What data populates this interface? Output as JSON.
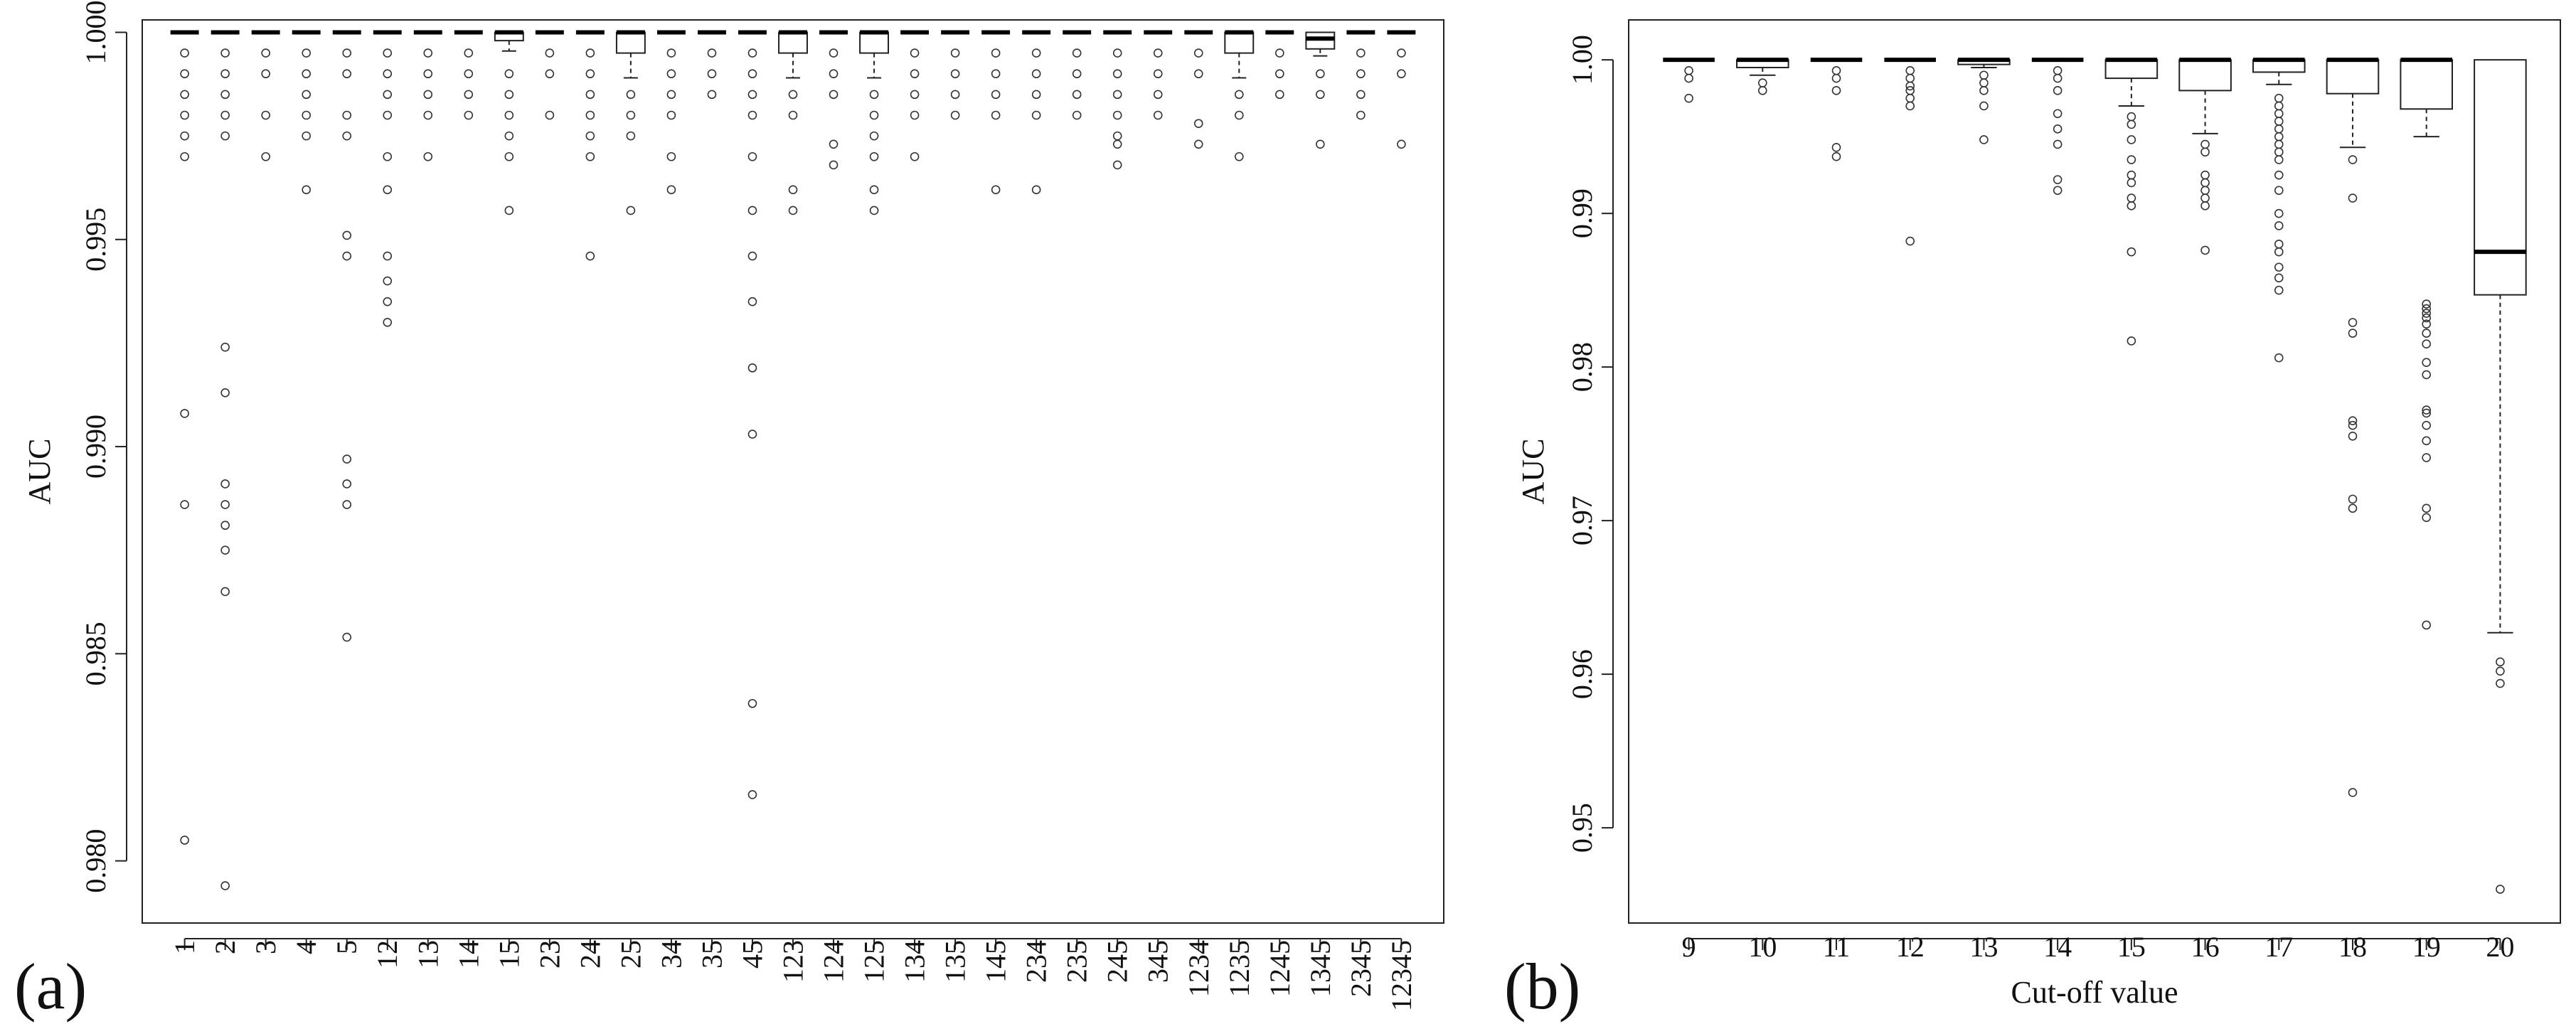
{
  "chart_data": [
    {
      "type": "box",
      "panel_label": "(a)",
      "ylabel": "AUC",
      "xlabel": "",
      "ylim": [
        0.9785,
        1.0003
      ],
      "yticks": [
        0.98,
        0.985,
        0.99,
        0.995,
        1.0
      ],
      "ytick_labels": [
        "0.980",
        "0.985",
        "0.990",
        "0.995",
        "1.000"
      ],
      "grid": false,
      "categories": [
        "1",
        "2",
        "3",
        "4",
        "5",
        "12",
        "13",
        "14",
        "15",
        "23",
        "24",
        "25",
        "34",
        "35",
        "45",
        "123",
        "124",
        "125",
        "134",
        "135",
        "145",
        "234",
        "235",
        "245",
        "345",
        "1234",
        "1235",
        "1245",
        "1345",
        "2345",
        "12345"
      ],
      "boxes": [
        {
          "q1": 1.0,
          "median": 1.0,
          "q3": 1.0,
          "whisker_low": 1.0,
          "whisker_high": 1.0,
          "outliers": [
            0.9995,
            0.999,
            0.9985,
            0.998,
            0.9975,
            0.997,
            0.9908,
            0.9886,
            0.9805
          ]
        },
        {
          "q1": 1.0,
          "median": 1.0,
          "q3": 1.0,
          "whisker_low": 1.0,
          "whisker_high": 1.0,
          "outliers": [
            0.9995,
            0.999,
            0.9985,
            0.998,
            0.9975,
            0.9924,
            0.9913,
            0.9891,
            0.9886,
            0.9881,
            0.9875,
            0.9865,
            0.9794
          ]
        },
        {
          "q1": 1.0,
          "median": 1.0,
          "q3": 1.0,
          "whisker_low": 1.0,
          "whisker_high": 1.0,
          "outliers": [
            0.9995,
            0.999,
            0.998,
            0.997
          ]
        },
        {
          "q1": 1.0,
          "median": 1.0,
          "q3": 1.0,
          "whisker_low": 1.0,
          "whisker_high": 1.0,
          "outliers": [
            0.9995,
            0.999,
            0.9985,
            0.998,
            0.9975,
            0.9962
          ]
        },
        {
          "q1": 1.0,
          "median": 1.0,
          "q3": 1.0,
          "whisker_low": 1.0,
          "whisker_high": 1.0,
          "outliers": [
            0.9995,
            0.999,
            0.998,
            0.9975,
            0.9951,
            0.9946,
            0.9897,
            0.9891,
            0.9886,
            0.9854
          ]
        },
        {
          "q1": 1.0,
          "median": 1.0,
          "q3": 1.0,
          "whisker_low": 1.0,
          "whisker_high": 1.0,
          "outliers": [
            0.9995,
            0.999,
            0.9985,
            0.998,
            0.997,
            0.9962,
            0.9946,
            0.994,
            0.9935,
            0.993
          ]
        },
        {
          "q1": 1.0,
          "median": 1.0,
          "q3": 1.0,
          "whisker_low": 1.0,
          "whisker_high": 1.0,
          "outliers": [
            0.9995,
            0.999,
            0.9985,
            0.998,
            0.997
          ]
        },
        {
          "q1": 1.0,
          "median": 1.0,
          "q3": 1.0,
          "whisker_low": 1.0,
          "whisker_high": 1.0,
          "outliers": [
            0.9995,
            0.999,
            0.9985,
            0.998
          ]
        },
        {
          "q1": 0.9998,
          "median": 1.0,
          "q3": 1.0,
          "whisker_low": 0.99955,
          "whisker_high": 1.0,
          "outliers": [
            0.999,
            0.9985,
            0.998,
            0.9975,
            0.997,
            0.9957
          ]
        },
        {
          "q1": 1.0,
          "median": 1.0,
          "q3": 1.0,
          "whisker_low": 1.0,
          "whisker_high": 1.0,
          "outliers": [
            0.9995,
            0.999,
            0.998
          ]
        },
        {
          "q1": 1.0,
          "median": 1.0,
          "q3": 1.0,
          "whisker_low": 1.0,
          "whisker_high": 1.0,
          "outliers": [
            0.9995,
            0.999,
            0.9985,
            0.998,
            0.9975,
            0.997,
            0.9946
          ]
        },
        {
          "q1": 0.9995,
          "median": 1.0,
          "q3": 1.0,
          "whisker_low": 0.9989,
          "whisker_high": 1.0,
          "outliers": [
            0.9985,
            0.998,
            0.9975,
            0.9957
          ]
        },
        {
          "q1": 1.0,
          "median": 1.0,
          "q3": 1.0,
          "whisker_low": 1.0,
          "whisker_high": 1.0,
          "outliers": [
            0.9995,
            0.999,
            0.9985,
            0.998,
            0.997,
            0.9962
          ]
        },
        {
          "q1": 1.0,
          "median": 1.0,
          "q3": 1.0,
          "whisker_low": 1.0,
          "whisker_high": 1.0,
          "outliers": [
            0.9995,
            0.999,
            0.9985
          ]
        },
        {
          "q1": 1.0,
          "median": 1.0,
          "q3": 1.0,
          "whisker_low": 1.0,
          "whisker_high": 1.0,
          "outliers": [
            0.9995,
            0.999,
            0.9985,
            0.998,
            0.997,
            0.9957,
            0.9946,
            0.9935,
            0.9919,
            0.9903,
            0.9838,
            0.9816
          ]
        },
        {
          "q1": 0.9995,
          "median": 1.0,
          "q3": 1.0,
          "whisker_low": 0.9989,
          "whisker_high": 1.0,
          "outliers": [
            0.9985,
            0.998,
            0.9962,
            0.9957
          ]
        },
        {
          "q1": 1.0,
          "median": 1.0,
          "q3": 1.0,
          "whisker_low": 1.0,
          "whisker_high": 1.0,
          "outliers": [
            0.9995,
            0.999,
            0.9985,
            0.9973,
            0.9968
          ]
        },
        {
          "q1": 0.9995,
          "median": 1.0,
          "q3": 1.0,
          "whisker_low": 0.9989,
          "whisker_high": 1.0,
          "outliers": [
            0.9985,
            0.998,
            0.9975,
            0.997,
            0.9962,
            0.9957
          ]
        },
        {
          "q1": 1.0,
          "median": 1.0,
          "q3": 1.0,
          "whisker_low": 1.0,
          "whisker_high": 1.0,
          "outliers": [
            0.9995,
            0.999,
            0.9985,
            0.998,
            0.997
          ]
        },
        {
          "q1": 1.0,
          "median": 1.0,
          "q3": 1.0,
          "whisker_low": 1.0,
          "whisker_high": 1.0,
          "outliers": [
            0.9995,
            0.999,
            0.9985,
            0.998
          ]
        },
        {
          "q1": 1.0,
          "median": 1.0,
          "q3": 1.0,
          "whisker_low": 1.0,
          "whisker_high": 1.0,
          "outliers": [
            0.9995,
            0.999,
            0.9985,
            0.998,
            0.9962
          ]
        },
        {
          "q1": 1.0,
          "median": 1.0,
          "q3": 1.0,
          "whisker_low": 1.0,
          "whisker_high": 1.0,
          "outliers": [
            0.9995,
            0.999,
            0.9985,
            0.998,
            0.9962
          ]
        },
        {
          "q1": 1.0,
          "median": 1.0,
          "q3": 1.0,
          "whisker_low": 1.0,
          "whisker_high": 1.0,
          "outliers": [
            0.9995,
            0.999,
            0.9985,
            0.998
          ]
        },
        {
          "q1": 1.0,
          "median": 1.0,
          "q3": 1.0,
          "whisker_low": 1.0,
          "whisker_high": 1.0,
          "outliers": [
            0.9995,
            0.999,
            0.9985,
            0.998,
            0.9975,
            0.9973,
            0.9968
          ]
        },
        {
          "q1": 1.0,
          "median": 1.0,
          "q3": 1.0,
          "whisker_low": 1.0,
          "whisker_high": 1.0,
          "outliers": [
            0.9995,
            0.999,
            0.9985,
            0.998
          ]
        },
        {
          "q1": 1.0,
          "median": 1.0,
          "q3": 1.0,
          "whisker_low": 1.0,
          "whisker_high": 1.0,
          "outliers": [
            0.9995,
            0.999,
            0.9978,
            0.9973
          ]
        },
        {
          "q1": 0.9995,
          "median": 1.0,
          "q3": 1.0,
          "whisker_low": 0.9989,
          "whisker_high": 1.0,
          "outliers": [
            0.9985,
            0.998,
            0.997
          ]
        },
        {
          "q1": 1.0,
          "median": 1.0,
          "q3": 1.0,
          "whisker_low": 1.0,
          "whisker_high": 1.0,
          "outliers": [
            0.9995,
            0.999,
            0.9985
          ]
        },
        {
          "q1": 0.9996,
          "median": 0.99985,
          "q3": 1.0,
          "whisker_low": 0.99943,
          "whisker_high": 1.0,
          "outliers": [
            0.999,
            0.9985,
            0.9973
          ]
        },
        {
          "q1": 1.0,
          "median": 1.0,
          "q3": 1.0,
          "whisker_low": 1.0,
          "whisker_high": 1.0,
          "outliers": [
            0.9995,
            0.999,
            0.9985,
            0.998
          ]
        },
        {
          "q1": 1.0,
          "median": 1.0,
          "q3": 1.0,
          "whisker_low": 1.0,
          "whisker_high": 1.0,
          "outliers": [
            0.9995,
            0.999,
            0.9973
          ]
        }
      ]
    },
    {
      "type": "box",
      "panel_label": "(b)",
      "ylabel": "AUC",
      "xlabel": "Cut-off value",
      "ylim": [
        0.9438,
        1.0026
      ],
      "yticks": [
        0.95,
        0.96,
        0.97,
        0.98,
        0.99,
        1.0
      ],
      "ytick_labels": [
        "0.95",
        "0.96",
        "0.97",
        "0.98",
        "0.99",
        "1.00"
      ],
      "grid": false,
      "categories": [
        "9",
        "10",
        "11",
        "12",
        "13",
        "14",
        "15",
        "16",
        "17",
        "18",
        "19",
        "20"
      ],
      "boxes": [
        {
          "q1": 1.0,
          "median": 1.0,
          "q3": 1.0,
          "whisker_low": 1.0,
          "whisker_high": 1.0,
          "outliers": [
            0.9993,
            0.9988,
            0.9975
          ]
        },
        {
          "q1": 0.9995,
          "median": 1.0,
          "q3": 1.0,
          "whisker_low": 0.999,
          "whisker_high": 1.0,
          "outliers": [
            0.9985,
            0.998
          ]
        },
        {
          "q1": 1.0,
          "median": 1.0,
          "q3": 1.0,
          "whisker_low": 1.0,
          "whisker_high": 1.0,
          "outliers": [
            0.9993,
            0.9988,
            0.998,
            0.9943,
            0.9937
          ]
        },
        {
          "q1": 1.0,
          "median": 1.0,
          "q3": 1.0,
          "whisker_low": 1.0,
          "whisker_high": 1.0,
          "outliers": [
            0.9993,
            0.9988,
            0.9983,
            0.998,
            0.9975,
            0.997,
            0.9882
          ]
        },
        {
          "q1": 0.9997,
          "median": 1.0,
          "q3": 1.0,
          "whisker_low": 0.9995,
          "whisker_high": 1.0,
          "outliers": [
            0.999,
            0.9985,
            0.998,
            0.997,
            0.9948
          ]
        },
        {
          "q1": 1.0,
          "median": 1.0,
          "q3": 1.0,
          "whisker_low": 1.0,
          "whisker_high": 1.0,
          "outliers": [
            0.9993,
            0.9988,
            0.998,
            0.9965,
            0.9955,
            0.9945,
            0.9922,
            0.9915
          ]
        },
        {
          "q1": 0.9988,
          "median": 1.0,
          "q3": 1.0,
          "whisker_low": 0.997,
          "whisker_high": 1.0,
          "outliers": [
            0.9963,
            0.9958,
            0.9948,
            0.9935,
            0.9925,
            0.992,
            0.991,
            0.9905,
            0.9875,
            0.9817
          ]
        },
        {
          "q1": 0.998,
          "median": 1.0,
          "q3": 1.0,
          "whisker_low": 0.9952,
          "whisker_high": 1.0,
          "outliers": [
            0.9945,
            0.994,
            0.9925,
            0.992,
            0.9915,
            0.991,
            0.9905,
            0.9876
          ]
        },
        {
          "q1": 0.9992,
          "median": 1.0,
          "q3": 1.0,
          "whisker_low": 0.9984,
          "whisker_high": 1.0,
          "outliers": [
            0.9975,
            0.997,
            0.9965,
            0.996,
            0.9955,
            0.995,
            0.9945,
            0.994,
            0.9935,
            0.9925,
            0.9915,
            0.99,
            0.9892,
            0.988,
            0.9875,
            0.9865,
            0.9858,
            0.985,
            0.9806
          ]
        },
        {
          "q1": 0.9978,
          "median": 1.0,
          "q3": 1.0,
          "whisker_low": 0.9943,
          "whisker_high": 1.0,
          "outliers": [
            0.9935,
            0.991,
            0.9829,
            0.9822,
            0.9765,
            0.9762,
            0.9755,
            0.9714,
            0.9708,
            0.9523
          ]
        },
        {
          "q1": 0.9968,
          "median": 1.0,
          "q3": 1.0,
          "whisker_low": 0.995,
          "whisker_high": 1.0,
          "outliers": [
            0.9841,
            0.9838,
            0.9835,
            0.9832,
            0.9828,
            0.9822,
            0.9815,
            0.9803,
            0.9795,
            0.9772,
            0.977,
            0.9762,
            0.9752,
            0.9741,
            0.9708,
            0.9702,
            0.9632
          ]
        },
        {
          "q1": 0.9847,
          "median": 0.9875,
          "q3": 1.0,
          "whisker_low": 0.9627,
          "whisker_high": 1.0,
          "outliers": [
            0.9608,
            0.9602,
            0.9594,
            0.946
          ]
        }
      ]
    }
  ]
}
